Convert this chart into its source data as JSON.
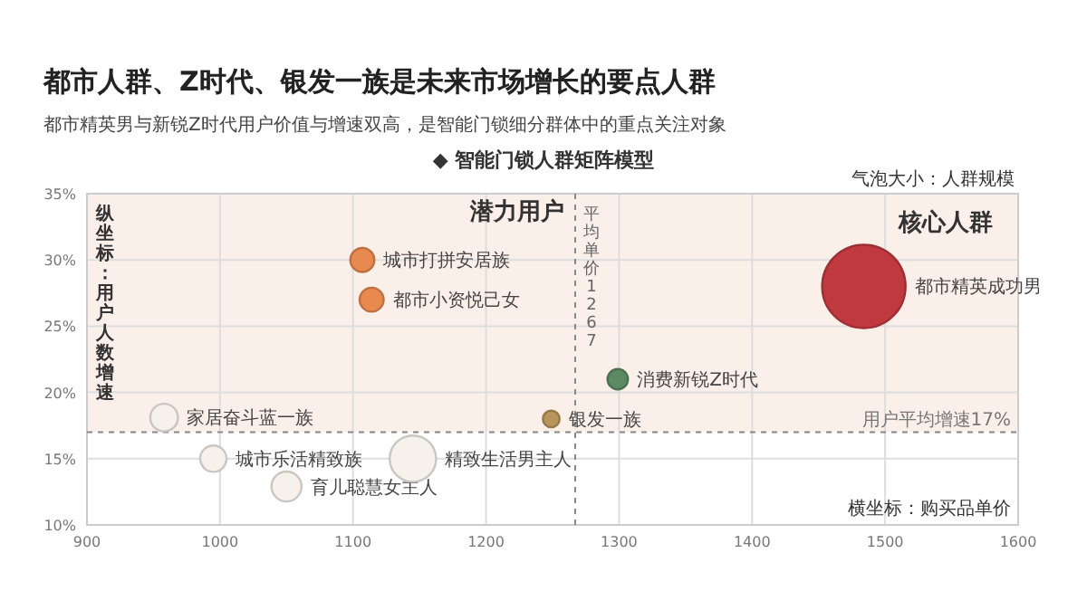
{
  "chart_data": {
    "type": "bubble",
    "title": "都市人群、Z时代、银发一族是未来市场增长的要点人群",
    "subtitle": "都市精英男与新锐Z时代用户价值与增速双高，是智能门锁细分群体中的重点关注对象",
    "legend_title": "◆ 智能门锁人群矩阵模型",
    "xlabel": "横坐标：购买品单价",
    "ylabel": "纵坐标：用户人数增速",
    "annotations": [
      "气泡大小：人群规模",
      "潜力用户",
      "核心人群"
    ],
    "series": [
      {
        "x": [
          1107,
          1114,
          1249,
          1299,
          1484,
          958,
          995,
          1050,
          1145
        ],
        "values": [
          30.0,
          27.0,
          18.0,
          21.0,
          28.0,
          18.1,
          15.0,
          12.9,
          15.0
        ],
        "sizes": [
          0.083,
          0.083,
          0.04,
          0.06,
          1,
          0.11,
          0.1,
          0.13,
          0.31
        ],
        "colors": [
          "#e8894f",
          "#e8894f",
          "#b8955a",
          "#5c8a62",
          "#c0393f",
          "#f6f1eb",
          "#f6f1eb",
          "#f6f1eb",
          "#f6f1eb"
        ],
        "value_labels": [
          "城市打拼安居族",
          "都市小资悦己女",
          "银发一族",
          "消费新锐Z时代",
          "都市精英成功男",
          "家居奋斗蓝一族",
          "城市乐活精致族",
          "育儿聪慧女主人",
          "精致生活男主人"
        ]
      }
    ],
    "xlim": [
      900,
      1600
    ],
    "xticks": [
      900,
      1000,
      1100,
      1200,
      1300,
      1400,
      1500,
      1600
    ],
    "ylim": [
      10,
      35
    ],
    "yticks": [
      {
        "value": 10,
        "label": "10%"
      },
      {
        "value": 15,
        "label": "15%"
      },
      {
        "value": 20,
        "label": "20%"
      },
      {
        "value": 25,
        "label": "25%"
      },
      {
        "value": 30,
        "label": "30%"
      },
      {
        "value": 35,
        "label": "35%"
      }
    ],
    "grid": true,
    "bands": [
      {
        "axis": "y",
        "from": 17,
        "to": 35,
        "color": "#fbefea"
      }
    ],
    "ref_lines": [
      {
        "axis": "y",
        "value": 17,
        "label": "用户平均增速17%",
        "line_style": "dashed"
      },
      {
        "axis": "x",
        "value": 1267,
        "label": "平均单价1267",
        "line_style": "dashed"
      }
    ]
  }
}
